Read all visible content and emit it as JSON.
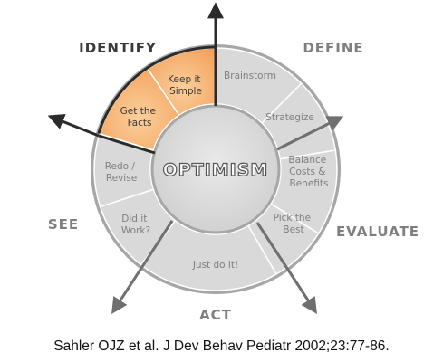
{
  "stages": {
    "identify": "IDENTIFY",
    "define": "DEFINE",
    "evaluate": "EVALUATE",
    "act": "ACT",
    "see": "SEE"
  },
  "center_label": "OPTIMISM",
  "steps": {
    "keep_it_simple": [
      "Keep it",
      "Simple"
    ],
    "get_the_facts": [
      "Get the",
      "Facts"
    ],
    "brainstorm": [
      "Brainstorm"
    ],
    "strategize": [
      "Strategize"
    ],
    "balance": [
      "Balance",
      "Costs &",
      "Benefits"
    ],
    "pick_the_best": [
      "Pick the",
      "Best"
    ],
    "just_do_it": [
      "Just do it!"
    ],
    "did_it_work": [
      "Did it",
      "Work?"
    ],
    "redo_revise": [
      "Redo /",
      "Revise"
    ]
  },
  "highlighted_stage": "IDENTIFY",
  "colors": {
    "highlight": "#f6ad6a",
    "segment": "#d9d9d9",
    "ring_border": "#a6a6a6",
    "arrow": "#6f6f6f",
    "text_gray": "#7f7f7f",
    "text_dark": "#3a3a3a"
  },
  "citation": "Sahler OJZ et al. J Dev Behav Pediatr 2002;23:77-86."
}
